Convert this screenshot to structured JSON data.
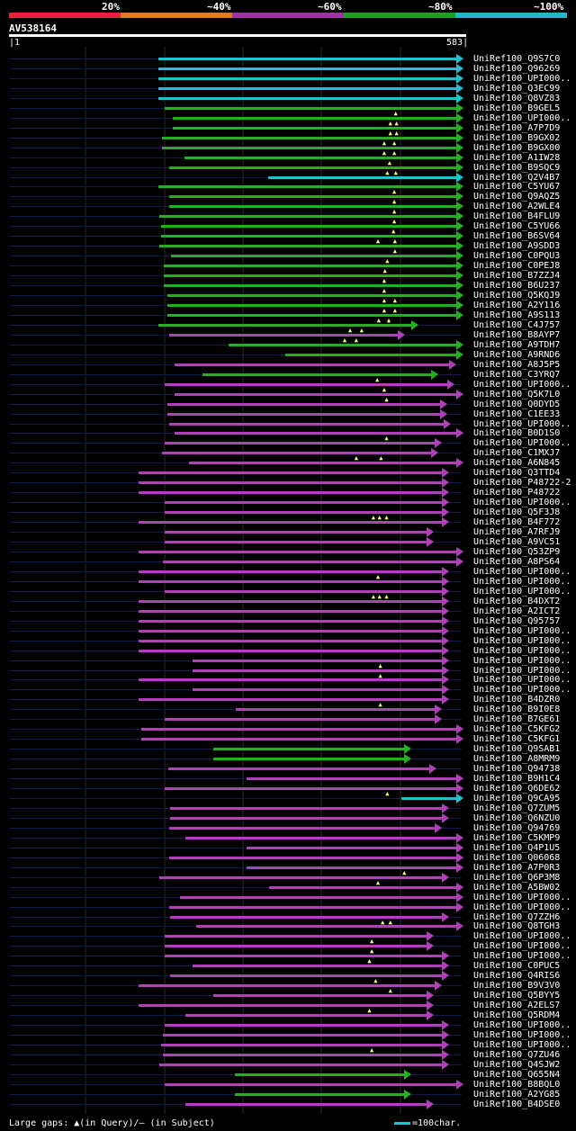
{
  "scale": {
    "labels": [
      "20%",
      "~40%",
      "~60%",
      "~80%",
      "~100%"
    ],
    "colors": [
      "#e8203a",
      "#e07a20",
      "#a030a8",
      "#20a020",
      "#20b8c8"
    ]
  },
  "query": {
    "id": "AV538164",
    "start": "1",
    "end": "583"
  },
  "colors": {
    "cyan": "#20c0d0",
    "green": "#22b022",
    "magenta": "#b040b8"
  },
  "hits": [
    {
      "label": "UniRef100_Q9S7C0",
      "start": 192,
      "end": 583,
      "color": "cyan"
    },
    {
      "label": "UniRef100_Q96269",
      "start": 192,
      "end": 583,
      "color": "cyan"
    },
    {
      "label": "UniRef100_UPI000..",
      "start": 192,
      "end": 583,
      "color": "cyan"
    },
    {
      "label": "UniRef100_Q3EC99",
      "start": 192,
      "end": 583,
      "color": "cyan"
    },
    {
      "label": "UniRef100_Q8VZ83",
      "start": 192,
      "end": 583,
      "color": "cyan"
    },
    {
      "label": "UniRef100_B9GEL5",
      "start": 200,
      "end": 583,
      "color": "green",
      "gaps": [
        499
      ]
    },
    {
      "label": "UniRef100_UPI000..",
      "start": 210,
      "end": 583,
      "color": "green",
      "gaps": [
        492,
        500
      ]
    },
    {
      "label": "UniRef100_A7P7D9",
      "start": 210,
      "end": 583,
      "color": "green",
      "gaps": [
        492,
        500
      ]
    },
    {
      "label": "UniRef100_B9GX02",
      "start": 196,
      "end": 583,
      "color": "green",
      "gaps": [
        484,
        497
      ]
    },
    {
      "label": "UniRef100_B9GX00",
      "start": 196,
      "end": 583,
      "color": "green",
      "gaps": [
        484,
        497
      ]
    },
    {
      "label": "UniRef100_A1IW28",
      "start": 225,
      "end": 583,
      "color": "green",
      "gaps": [
        491
      ]
    },
    {
      "label": "UniRef100_B9SQC9",
      "start": 205,
      "end": 583,
      "color": "green",
      "gaps": [
        488,
        499
      ]
    },
    {
      "label": "UniRef100_Q2V4B7",
      "start": 333,
      "end": 583,
      "color": "cyan"
    },
    {
      "label": "UniRef100_C5YU67",
      "start": 192,
      "end": 583,
      "color": "green",
      "gaps": [
        497
      ]
    },
    {
      "label": "UniRef100_Q9AQZ5",
      "start": 205,
      "end": 583,
      "color": "green",
      "gaps": [
        497
      ]
    },
    {
      "label": "UniRef100_A2WLE4",
      "start": 205,
      "end": 583,
      "color": "green",
      "gaps": [
        497
      ]
    },
    {
      "label": "UniRef100_B4FLU9",
      "start": 193,
      "end": 583,
      "color": "green",
      "gaps": [
        497
      ]
    },
    {
      "label": "UniRef100_C5YU66",
      "start": 195,
      "end": 583,
      "color": "green",
      "gaps": [
        496
      ]
    },
    {
      "label": "UniRef100_B6SV64",
      "start": 195,
      "end": 583,
      "color": "green",
      "gaps": [
        476,
        498
      ]
    },
    {
      "label": "UniRef100_A9SDD3",
      "start": 193,
      "end": 583,
      "color": "green",
      "gaps": [
        498
      ]
    },
    {
      "label": "UniRef100_C0PQU3",
      "start": 208,
      "end": 583,
      "color": "green",
      "gaps": [
        488
      ]
    },
    {
      "label": "UniRef100_C0PEJ8",
      "start": 199,
      "end": 583,
      "color": "green",
      "gaps": [
        485
      ]
    },
    {
      "label": "UniRef100_B7ZZJ4",
      "start": 199,
      "end": 583,
      "color": "green",
      "gaps": [
        484
      ]
    },
    {
      "label": "UniRef100_B6U237",
      "start": 199,
      "end": 583,
      "color": "green",
      "gaps": [
        484
      ]
    },
    {
      "label": "UniRef100_Q5KQJ9",
      "start": 203,
      "end": 583,
      "color": "green",
      "gaps": [
        484,
        498
      ]
    },
    {
      "label": "UniRef100_A2Y116",
      "start": 203,
      "end": 583,
      "color": "green",
      "gaps": [
        484,
        498
      ]
    },
    {
      "label": "UniRef100_A9S113",
      "start": 203,
      "end": 583,
      "color": "green",
      "gaps": [
        477,
        490
      ]
    },
    {
      "label": "UniRef100_C4J757",
      "start": 192,
      "end": 525,
      "color": "green",
      "gaps": [
        440,
        455
      ]
    },
    {
      "label": "UniRef100_B8AYP7",
      "start": 206,
      "end": 508,
      "color": "magenta",
      "gaps": [
        433,
        448
      ]
    },
    {
      "label": "UniRef100_A9TDH7",
      "start": 282,
      "end": 583,
      "color": "green"
    },
    {
      "label": "UniRef100_A9RND6",
      "start": 355,
      "end": 583,
      "color": "green"
    },
    {
      "label": "UniRef100_A8J5P5",
      "start": 212,
      "end": 574,
      "color": "magenta"
    },
    {
      "label": "UniRef100_C3YRQ7",
      "start": 248,
      "end": 551,
      "color": "green",
      "gaps": [
        475
      ]
    },
    {
      "label": "UniRef100_UPI000..",
      "start": 200,
      "end": 571,
      "color": "magenta",
      "gaps": [
        484
      ]
    },
    {
      "label": "UniRef100_Q5K7L0",
      "start": 212,
      "end": 583,
      "color": "magenta",
      "gaps": [
        487
      ]
    },
    {
      "label": "UniRef100_Q0DYD5",
      "start": 203,
      "end": 562,
      "color": "magenta"
    },
    {
      "label": "UniRef100_C1EE33",
      "start": 203,
      "end": 562,
      "color": "magenta"
    },
    {
      "label": "UniRef100_UPI000..",
      "start": 205,
      "end": 567,
      "color": "magenta"
    },
    {
      "label": "UniRef100_B0D1S0",
      "start": 212,
      "end": 583,
      "color": "magenta",
      "gaps": [
        487
      ]
    },
    {
      "label": "UniRef100_UPI000..",
      "start": 200,
      "end": 555,
      "color": "magenta"
    },
    {
      "label": "UniRef100_C1MXJ7",
      "start": 196,
      "end": 550,
      "color": "magenta",
      "gaps": [
        448,
        480
      ]
    },
    {
      "label": "UniRef100_A6N845",
      "start": 231,
      "end": 583,
      "color": "magenta"
    },
    {
      "label": "UniRef100_Q3TTD4",
      "start": 166,
      "end": 564,
      "color": "magenta"
    },
    {
      "label": "UniRef100_P48722-2",
      "start": 166,
      "end": 564,
      "color": "magenta"
    },
    {
      "label": "UniRef100_P48722",
      "start": 166,
      "end": 564,
      "color": "magenta"
    },
    {
      "label": "UniRef100_UPI000..",
      "start": 200,
      "end": 564,
      "color": "magenta"
    },
    {
      "label": "UniRef100_Q5F3J8",
      "start": 200,
      "end": 564,
      "color": "magenta",
      "gaps": [
        470,
        478,
        487
      ]
    },
    {
      "label": "UniRef100_B4F772",
      "start": 166,
      "end": 564,
      "color": "magenta"
    },
    {
      "label": "UniRef100_A7RFJ9",
      "start": 200,
      "end": 545,
      "color": "magenta"
    },
    {
      "label": "UniRef100_A9VC51",
      "start": 200,
      "end": 545,
      "color": "magenta"
    },
    {
      "label": "UniRef100_Q53ZP9",
      "start": 166,
      "end": 583,
      "color": "magenta"
    },
    {
      "label": "UniRef100_A8PS64",
      "start": 197,
      "end": 583,
      "color": "magenta"
    },
    {
      "label": "UniRef100_UPI000..",
      "start": 166,
      "end": 564,
      "color": "magenta",
      "gaps": [
        476
      ]
    },
    {
      "label": "UniRef100_UPI000..",
      "start": 166,
      "end": 564,
      "color": "magenta"
    },
    {
      "label": "UniRef100_UPI000..",
      "start": 200,
      "end": 564,
      "color": "magenta",
      "gaps": [
        470,
        478,
        487
      ]
    },
    {
      "label": "UniRef100_B4DXT2",
      "start": 166,
      "end": 564,
      "color": "magenta"
    },
    {
      "label": "UniRef100_A2ICT2",
      "start": 166,
      "end": 564,
      "color": "magenta"
    },
    {
      "label": "UniRef100_Q95757",
      "start": 166,
      "end": 564,
      "color": "magenta"
    },
    {
      "label": "UniRef100_UPI000..",
      "start": 166,
      "end": 564,
      "color": "magenta"
    },
    {
      "label": "UniRef100_UPI000..",
      "start": 166,
      "end": 564,
      "color": "magenta"
    },
    {
      "label": "UniRef100_UPI000..",
      "start": 166,
      "end": 564,
      "color": "magenta"
    },
    {
      "label": "UniRef100_UPI000..",
      "start": 236,
      "end": 564,
      "color": "magenta",
      "gaps": [
        479
      ]
    },
    {
      "label": "UniRef100_UPI000..",
      "start": 236,
      "end": 564,
      "color": "magenta",
      "gaps": [
        479
      ]
    },
    {
      "label": "UniRef100_UPI000..",
      "start": 166,
      "end": 564,
      "color": "magenta"
    },
    {
      "label": "UniRef100_UPI000..",
      "start": 236,
      "end": 564,
      "color": "magenta"
    },
    {
      "label": "UniRef100_B4DZR0",
      "start": 166,
      "end": 564,
      "color": "magenta",
      "gaps": [
        479
      ]
    },
    {
      "label": "UniRef100_B9I0E8",
      "start": 291,
      "end": 555,
      "color": "magenta"
    },
    {
      "label": "UniRef100_B7GE61",
      "start": 200,
      "end": 555,
      "color": "magenta"
    },
    {
      "label": "UniRef100_C5KFG2",
      "start": 170,
      "end": 583,
      "color": "magenta"
    },
    {
      "label": "UniRef100_C5KFG1",
      "start": 170,
      "end": 583,
      "color": "magenta"
    },
    {
      "label": "UniRef100_Q9SAB1",
      "start": 262,
      "end": 516,
      "color": "green"
    },
    {
      "label": "UniRef100_A8MRM9",
      "start": 262,
      "end": 516,
      "color": "green"
    },
    {
      "label": "UniRef100_Q94738",
      "start": 204,
      "end": 548,
      "color": "magenta"
    },
    {
      "label": "UniRef100_B9H1C4",
      "start": 305,
      "end": 583,
      "color": "magenta"
    },
    {
      "label": "UniRef100_Q6DE62",
      "start": 200,
      "end": 583,
      "color": "magenta",
      "gaps": [
        488
      ]
    },
    {
      "label": "UniRef100_Q9CA95",
      "start": 505,
      "end": 583,
      "color": "cyan"
    },
    {
      "label": "UniRef100_Q7ZUM5",
      "start": 207,
      "end": 564,
      "color": "magenta"
    },
    {
      "label": "UniRef100_Q6NZU0",
      "start": 207,
      "end": 564,
      "color": "magenta"
    },
    {
      "label": "UniRef100_Q94769",
      "start": 205,
      "end": 555,
      "color": "magenta"
    },
    {
      "label": "UniRef100_C5KMP9",
      "start": 227,
      "end": 583,
      "color": "magenta"
    },
    {
      "label": "UniRef100_Q4P1U5",
      "start": 305,
      "end": 583,
      "color": "magenta"
    },
    {
      "label": "UniRef100_Q06068",
      "start": 205,
      "end": 583,
      "color": "magenta"
    },
    {
      "label": "UniRef100_A7P0R3",
      "start": 305,
      "end": 583,
      "color": "magenta",
      "gaps": [
        510
      ]
    },
    {
      "label": "UniRef100_Q6P3M8",
      "start": 193,
      "end": 564,
      "color": "magenta",
      "gaps": [
        476
      ]
    },
    {
      "label": "UniRef100_A5BW02",
      "start": 334,
      "end": 583,
      "color": "magenta"
    },
    {
      "label": "UniRef100_UPI000..",
      "start": 220,
      "end": 583,
      "color": "magenta"
    },
    {
      "label": "UniRef100_UPI000..",
      "start": 205,
      "end": 583,
      "color": "magenta"
    },
    {
      "label": "UniRef100_Q7ZZH6",
      "start": 207,
      "end": 564,
      "color": "magenta",
      "gaps": [
        482,
        492
      ]
    },
    {
      "label": "UniRef100_Q8TGH3",
      "start": 240,
      "end": 583,
      "color": "magenta"
    },
    {
      "label": "UniRef100_UPI000..",
      "start": 200,
      "end": 545,
      "color": "magenta",
      "gaps": [
        468
      ]
    },
    {
      "label": "UniRef100_UPI000..",
      "start": 200,
      "end": 545,
      "color": "magenta",
      "gaps": [
        468
      ]
    },
    {
      "label": "UniRef100_UPI000..",
      "start": 200,
      "end": 564,
      "color": "magenta",
      "gaps": [
        465
      ]
    },
    {
      "label": "UniRef100_C0PUC5",
      "start": 236,
      "end": 564,
      "color": "magenta"
    },
    {
      "label": "UniRef100_Q4RIS6",
      "start": 207,
      "end": 564,
      "color": "magenta",
      "gaps": [
        473
      ]
    },
    {
      "label": "UniRef100_B9V3V0",
      "start": 166,
      "end": 555,
      "color": "magenta",
      "gaps": [
        492
      ]
    },
    {
      "label": "UniRef100_Q5BYY5",
      "start": 262,
      "end": 545,
      "color": "magenta"
    },
    {
      "label": "UniRef100_A2ELS7",
      "start": 166,
      "end": 545,
      "color": "magenta",
      "gaps": [
        465
      ]
    },
    {
      "label": "UniRef100_Q5RDM4",
      "start": 227,
      "end": 545,
      "color": "magenta"
    },
    {
      "label": "UniRef100_UPI000..",
      "start": 200,
      "end": 564,
      "color": "magenta"
    },
    {
      "label": "UniRef100_UPI000..",
      "start": 197,
      "end": 564,
      "color": "magenta"
    },
    {
      "label": "UniRef100_UPI000..",
      "start": 195,
      "end": 564,
      "color": "magenta",
      "gaps": [
        468
      ]
    },
    {
      "label": "UniRef100_Q7ZU46",
      "start": 197,
      "end": 564,
      "color": "magenta"
    },
    {
      "label": "UniRef100_Q4SJW2",
      "start": 193,
      "end": 564,
      "color": "magenta"
    },
    {
      "label": "UniRef100_Q655N4",
      "start": 290,
      "end": 516,
      "color": "green"
    },
    {
      "label": "UniRef100_B8BQL0",
      "start": 200,
      "end": 583,
      "color": "magenta"
    },
    {
      "label": "UniRef100_A2YG85",
      "start": 290,
      "end": 516,
      "color": "green"
    },
    {
      "label": "UniRef100_B4DSE0",
      "start": 227,
      "end": 545,
      "color": "magenta"
    }
  ],
  "legend": {
    "gaps_text": "Large gaps: ▲(in Query)/– (in Subject)",
    "scale_text": "=100char."
  }
}
